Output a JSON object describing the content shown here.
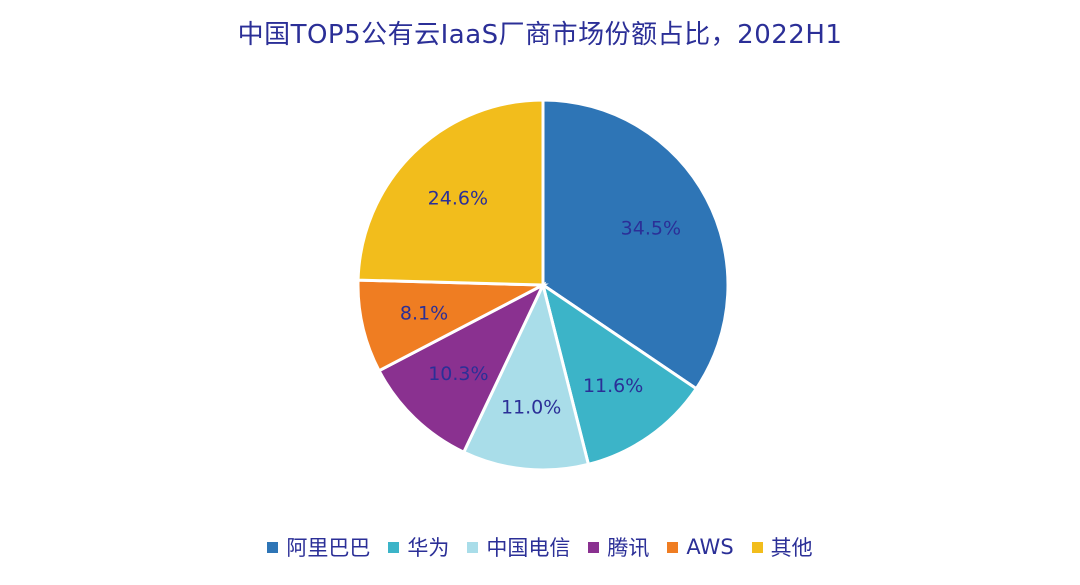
{
  "chart_data": {
    "type": "pie",
    "title": "中国TOP5公有云IaaS厂商市场份额占比，2022H1",
    "slices": [
      {
        "label": "阿里巴巴",
        "value": 34.5,
        "display": "34.5%",
        "color": "#2e75b6"
      },
      {
        "label": "华为",
        "value": 11.6,
        "display": "11.6%",
        "color": "#3cb4c8"
      },
      {
        "label": "中国电信",
        "value": 11.0,
        "display": "11.0%",
        "color": "#a9dde9"
      },
      {
        "label": "腾讯",
        "value": 10.3,
        "display": "10.3%",
        "color": "#8a3190"
      },
      {
        "label": "AWS",
        "value": 8.1,
        "display": "8.1%",
        "color": "#ef7d22"
      },
      {
        "label": "其他",
        "value": 24.6,
        "display": "24.6%",
        "color": "#f2bd1c"
      }
    ],
    "legend_position": "bottom",
    "label_color": "#2b2f97"
  }
}
